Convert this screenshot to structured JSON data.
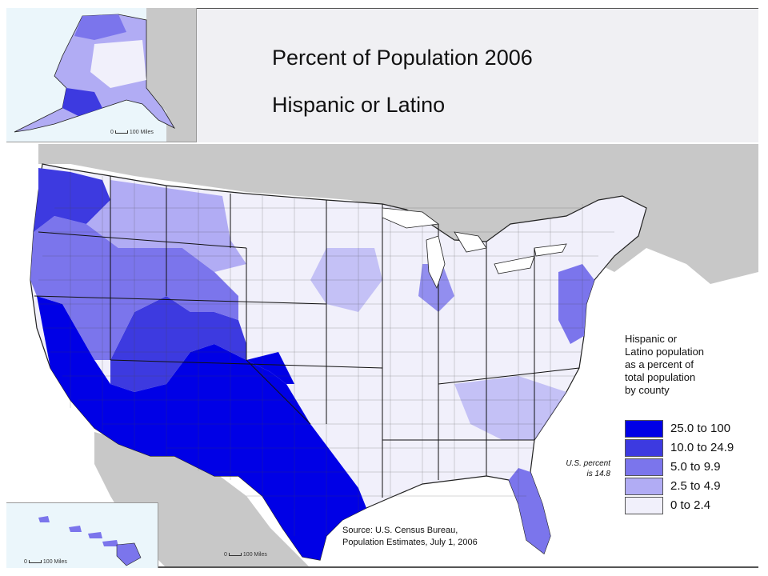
{
  "title": "Percent of Population 2006",
  "subtitle": "Hispanic or Latino",
  "legend": {
    "description": [
      "Hispanic or",
      "Latino population",
      "as a percent of",
      "total population",
      "by county"
    ],
    "classes": [
      {
        "label": "25.0 to 100",
        "color": "#0000e6"
      },
      {
        "label": "10.0 to 24.9",
        "color": "#3d3ae0"
      },
      {
        "label": "5.0 to 9.9",
        "color": "#7b75ec"
      },
      {
        "label": "2.5 to 4.9",
        "color": "#b1acf4"
      },
      {
        "label": "0 to 2.4",
        "color": "#f1f0fb"
      }
    ]
  },
  "us_note": [
    "U.S. percent",
    "is 14.8"
  ],
  "source": [
    "Source:  U.S. Census Bureau,",
    "Population Estimates, July 1, 2006"
  ],
  "scales": {
    "alaska": {
      "left": "0",
      "right": "100 Miles"
    },
    "hawaii": {
      "left": "0",
      "right": "100 Miles"
    },
    "conus": {
      "left": "0",
      "right": "100 Miles"
    }
  },
  "colors": {
    "background_land": "#c8c8c8",
    "water": "#ffffff",
    "title_band": "#f0f0f3",
    "county_border": "#444444"
  }
}
